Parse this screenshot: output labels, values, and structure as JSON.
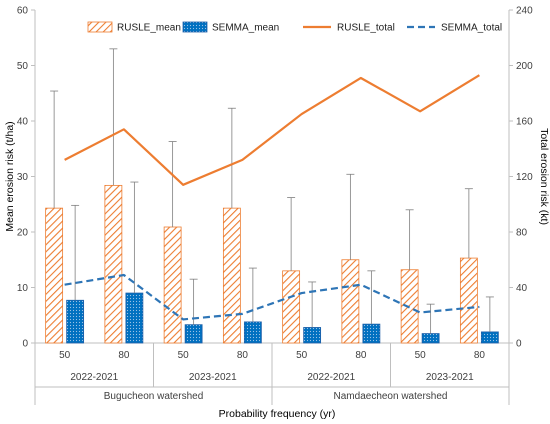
{
  "chart_data": {
    "type": "bar",
    "x": [
      "50",
      "80",
      "50",
      "80",
      "50",
      "80",
      "50",
      "80"
    ],
    "group_labels": [
      "2022-2021",
      "2023-2021",
      "2022-2021",
      "2023-2021"
    ],
    "watershed_labels": [
      "Bugucheon watershed",
      "Namdaecheon watershed"
    ],
    "xlabel": "Probability frequency (yr)",
    "ylabel": "Mean erosion risk (t/ha)",
    "y2label": "Total erosion risk (kt)",
    "ylim": [
      0,
      60
    ],
    "y2lim": [
      0,
      240
    ],
    "yticks": [
      "0",
      "10",
      "20",
      "30",
      "40",
      "50",
      "60"
    ],
    "y2ticks": [
      "0",
      "40",
      "80",
      "120",
      "160",
      "200",
      "240"
    ],
    "grid": false,
    "legend_position": "top",
    "series": [
      {
        "name": "RUSLE_mean",
        "kind": "bar",
        "axis": "left",
        "color": "#ed7d31",
        "pattern": "hatch",
        "values": [
          24.3,
          28.4,
          20.9,
          24.3,
          13.0,
          15.0,
          13.2,
          15.3
        ],
        "error_upper": [
          45.4,
          53.0,
          36.3,
          42.3,
          26.2,
          30.4,
          24.0,
          27.8
        ]
      },
      {
        "name": "SEMMA_mean",
        "kind": "bar",
        "axis": "left",
        "color": "#0070c0",
        "pattern": "dots",
        "values": [
          7.7,
          9.0,
          3.3,
          3.8,
          2.8,
          3.4,
          1.7,
          2.0
        ],
        "error_upper": [
          24.8,
          29.0,
          11.5,
          13.5,
          11.0,
          13.0,
          7.0,
          8.3
        ]
      },
      {
        "name": "RUSLE_total",
        "kind": "line",
        "axis": "right",
        "color": "#ed7d31",
        "dash": false,
        "values": [
          132,
          154,
          114,
          132,
          165,
          191,
          167,
          193
        ]
      },
      {
        "name": "SEMMA_total",
        "kind": "line",
        "axis": "right",
        "color": "#2e75b6",
        "dash": true,
        "values": [
          42,
          49,
          17,
          21,
          36,
          42,
          22,
          26
        ]
      }
    ]
  }
}
